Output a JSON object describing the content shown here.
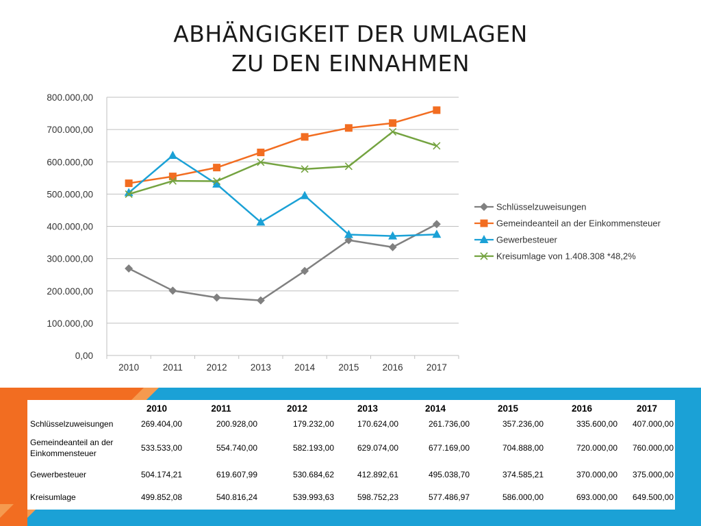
{
  "title": [
    "ABHÄNGIGKEIT DER UMLAGEN",
    "ZU DEN EINNAHMEN"
  ],
  "chart_data": {
    "type": "line",
    "categories": [
      "2010",
      "2011",
      "2012",
      "2013",
      "2014",
      "2015",
      "2016",
      "2017"
    ],
    "ylim": [
      0,
      800000
    ],
    "yticks": [
      "0,00",
      "100.000,00",
      "200.000,00",
      "300.000,00",
      "400.000,00",
      "500.000,00",
      "600.000,00",
      "700.000,00",
      "800.000,00"
    ],
    "grid": true,
    "legend_position": "right",
    "series": [
      {
        "name": "Schlüsselzuweisungen",
        "color": "#808080",
        "marker": "diamond",
        "values": [
          269404.0,
          200928.0,
          179232.0,
          170624.0,
          261736.0,
          357236.0,
          335600.0,
          407000.0
        ]
      },
      {
        "name": "Gemeindeanteil an der Einkommensteuer",
        "color": "#f26d21",
        "marker": "square",
        "values": [
          533533.0,
          554740.0,
          582193.0,
          629074.0,
          677169.0,
          704888.0,
          720000.0,
          760000.0
        ]
      },
      {
        "name": "Gewerbesteuer",
        "color": "#1ba1d6",
        "marker": "triangle",
        "values": [
          504174.21,
          619607.99,
          530684.62,
          412892.61,
          495038.7,
          374585.21,
          370000.0,
          375000.0
        ]
      },
      {
        "name": "Kreisumlage von 1.408.308 *48,2%",
        "color": "#74a340",
        "marker": "x",
        "values": [
          499852.08,
          540816.24,
          539993.63,
          598752.23,
          577486.97,
          586000.0,
          693000.0,
          649500.0
        ]
      }
    ]
  },
  "table": {
    "headers": [
      "",
      "2010",
      "2011",
      "2012",
      "2013",
      "2014",
      "2015",
      "2016",
      "2017"
    ],
    "rows": [
      [
        "Schlüsselzuweisungen",
        "269.404,00",
        "200.928,00",
        "179.232,00",
        "170.624,00",
        "261.736,00",
        "357.236,00",
        "335.600,00",
        "407.000,00"
      ],
      [
        "Gemeindeanteil an der Einkommensteuer",
        "533.533,00",
        "554.740,00",
        "582.193,00",
        "629.074,00",
        "677.169,00",
        "704.888,00",
        "720.000,00",
        "760.000,00"
      ],
      [
        "Gewerbesteuer",
        "504.174,21",
        "619.607,99",
        "530.684,62",
        "412.892,61",
        "495.038,70",
        "374.585,21",
        "370.000,00",
        "375.000,00"
      ],
      [
        "Kreisumlage",
        "499.852,08",
        "540.816,24",
        "539.993,63",
        "598.752,23",
        "577.486,97",
        "586.000,00",
        "693.000,00",
        "649.500,00"
      ]
    ]
  },
  "colors": {
    "band_blue": "#1ba1d6",
    "band_orange": "#f26d21",
    "band_light_orange": "#f59a4f"
  }
}
